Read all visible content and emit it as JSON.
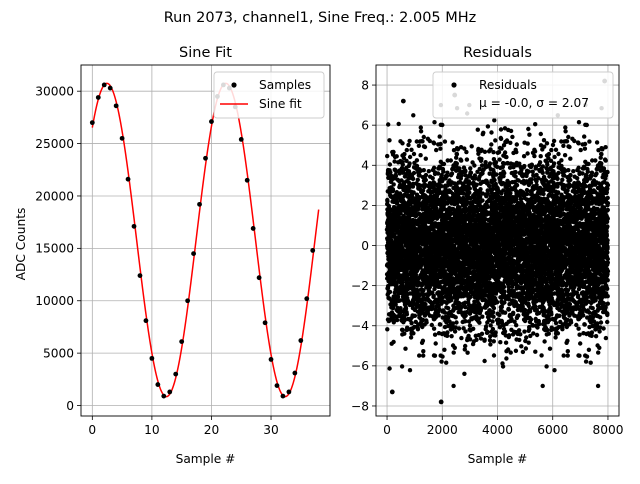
{
  "figure": {
    "suptitle": "Run 2073, channel1, Sine Freq.: 2.005 MHz"
  },
  "colors": {
    "samples": "#000000",
    "fit": "#ff0000",
    "grid": "#b0b0b0",
    "residuals": "#000000"
  },
  "chart_data": [
    {
      "type": "line",
      "title": "Sine Fit",
      "xlabel": "Sample #",
      "ylabel": "ADC Counts",
      "xlim": [
        -1.9,
        39.9
      ],
      "ylim": [
        -1000,
        32500
      ],
      "xticks": [
        0,
        10,
        20,
        30
      ],
      "yticks": [
        0,
        5000,
        10000,
        15000,
        20000,
        25000,
        30000
      ],
      "grid": true,
      "legend": {
        "position": "top-right",
        "entries": [
          "Samples",
          "Sine fit"
        ]
      },
      "series": [
        {
          "name": "Samples",
          "style": "scatter",
          "x": [
            0,
            1,
            2,
            3,
            4,
            5,
            6,
            7,
            8,
            9,
            10,
            11,
            12,
            13,
            14,
            15,
            16,
            17,
            18,
            19,
            20,
            21,
            22,
            23,
            24,
            25,
            26,
            27,
            28,
            29,
            30,
            31,
            32,
            33,
            34,
            35,
            36,
            37
          ],
          "y": [
            27000,
            29400,
            30600,
            30300,
            28600,
            25500,
            21600,
            17100,
            12400,
            8100,
            4500,
            2000,
            900,
            1300,
            3000,
            6100,
            10000,
            14500,
            19200,
            23600,
            27100,
            29500,
            30600,
            30300,
            28500,
            25400,
            21500,
            16900,
            12200,
            7900,
            4400,
            1900,
            900,
            1300,
            3100,
            6200,
            10200,
            14800
          ]
        },
        {
          "name": "Sine fit",
          "style": "line",
          "model": {
            "offset": 15800,
            "amplitude": 14950,
            "period": 19.96,
            "phase_at_zero": 0.8
          },
          "x_range": [
            0,
            38
          ]
        }
      ]
    },
    {
      "type": "scatter",
      "title": "Residuals",
      "xlabel": "Sample #",
      "ylabel": "",
      "xlim": [
        -400,
        8400
      ],
      "ylim": [
        -8.5,
        9.0
      ],
      "xticks": [
        0,
        2000,
        4000,
        6000,
        8000
      ],
      "yticks": [
        -8,
        -6,
        -4,
        -2,
        0,
        2,
        4,
        6,
        8
      ],
      "grid": true,
      "legend": {
        "position": "top-right",
        "entries": [
          "Residuals",
          "μ = -0.0, σ = 2.07"
        ]
      },
      "series": [
        {
          "name": "Residuals",
          "n_points": 8000,
          "x_range": [
            0,
            7999
          ],
          "distribution": {
            "mean": -0.0,
            "std": 2.07
          },
          "extremes": [
            {
              "x": 190,
              "y": -7.3
            },
            {
              "x": 1960,
              "y": -7.8
            },
            {
              "x": 7880,
              "y": 8.2
            },
            {
              "x": 2450,
              "y": 7.5
            },
            {
              "x": 590,
              "y": 7.2
            }
          ]
        }
      ]
    }
  ]
}
